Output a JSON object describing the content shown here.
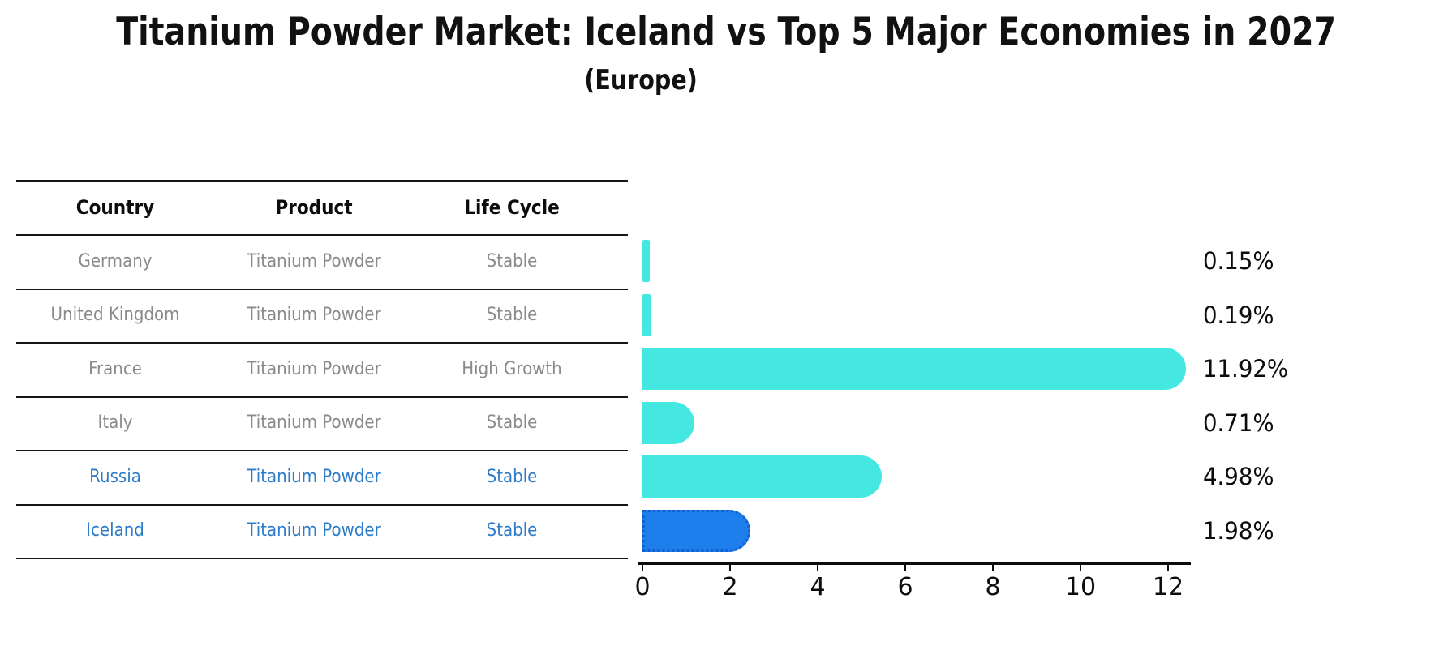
{
  "title": "Titanium Powder Market: Iceland vs Top 5 Major Economies in 2027",
  "subtitle": "(Europe)",
  "table": {
    "headers": [
      "Country",
      "Product",
      "Life Cycle"
    ],
    "rows": [
      {
        "country": "Germany",
        "product": "Titanium Powder",
        "life_cycle": "Stable",
        "highlight": false
      },
      {
        "country": "United Kingdom",
        "product": "Titanium Powder",
        "life_cycle": "Stable",
        "highlight": false
      },
      {
        "country": "France",
        "product": "Titanium Powder",
        "life_cycle": "High Growth",
        "highlight": false
      },
      {
        "country": "Italy",
        "product": "Titanium Powder",
        "life_cycle": "Stable",
        "highlight": false
      },
      {
        "country": "Russia",
        "product": "Titanium Powder",
        "life_cycle": "Stable",
        "highlight": true
      }
    ],
    "highlight_row": {
      "country": "Iceland",
      "product": "Titanium Powder",
      "life_cycle": "Stable"
    }
  },
  "chart_data": {
    "type": "bar",
    "orientation": "horizontal",
    "title": "Titanium Powder Market: Iceland vs Top 5 Major Economies in 2027",
    "subtitle": "(Europe)",
    "categories": [
      "Germany",
      "United Kingdom",
      "France",
      "Italy",
      "Russia",
      "Iceland"
    ],
    "values": [
      0.15,
      0.19,
      11.92,
      0.71,
      4.98,
      1.98
    ],
    "value_labels": [
      "0.15%",
      "0.19%",
      "11.92%",
      "0.71%",
      "4.98%",
      "1.98%"
    ],
    "xlabel": "",
    "ylabel": "",
    "xlim": [
      0,
      12.5
    ],
    "x_ticks": [
      0,
      2,
      4,
      6,
      8,
      10,
      12
    ],
    "grid": false,
    "legend": false,
    "bar_color": "#45E8E1",
    "highlight_index": 5,
    "highlight_color": "#1E7FEC",
    "highlight_border_color": "#1261D1",
    "highlight_text_color": "#2E7CC9"
  }
}
